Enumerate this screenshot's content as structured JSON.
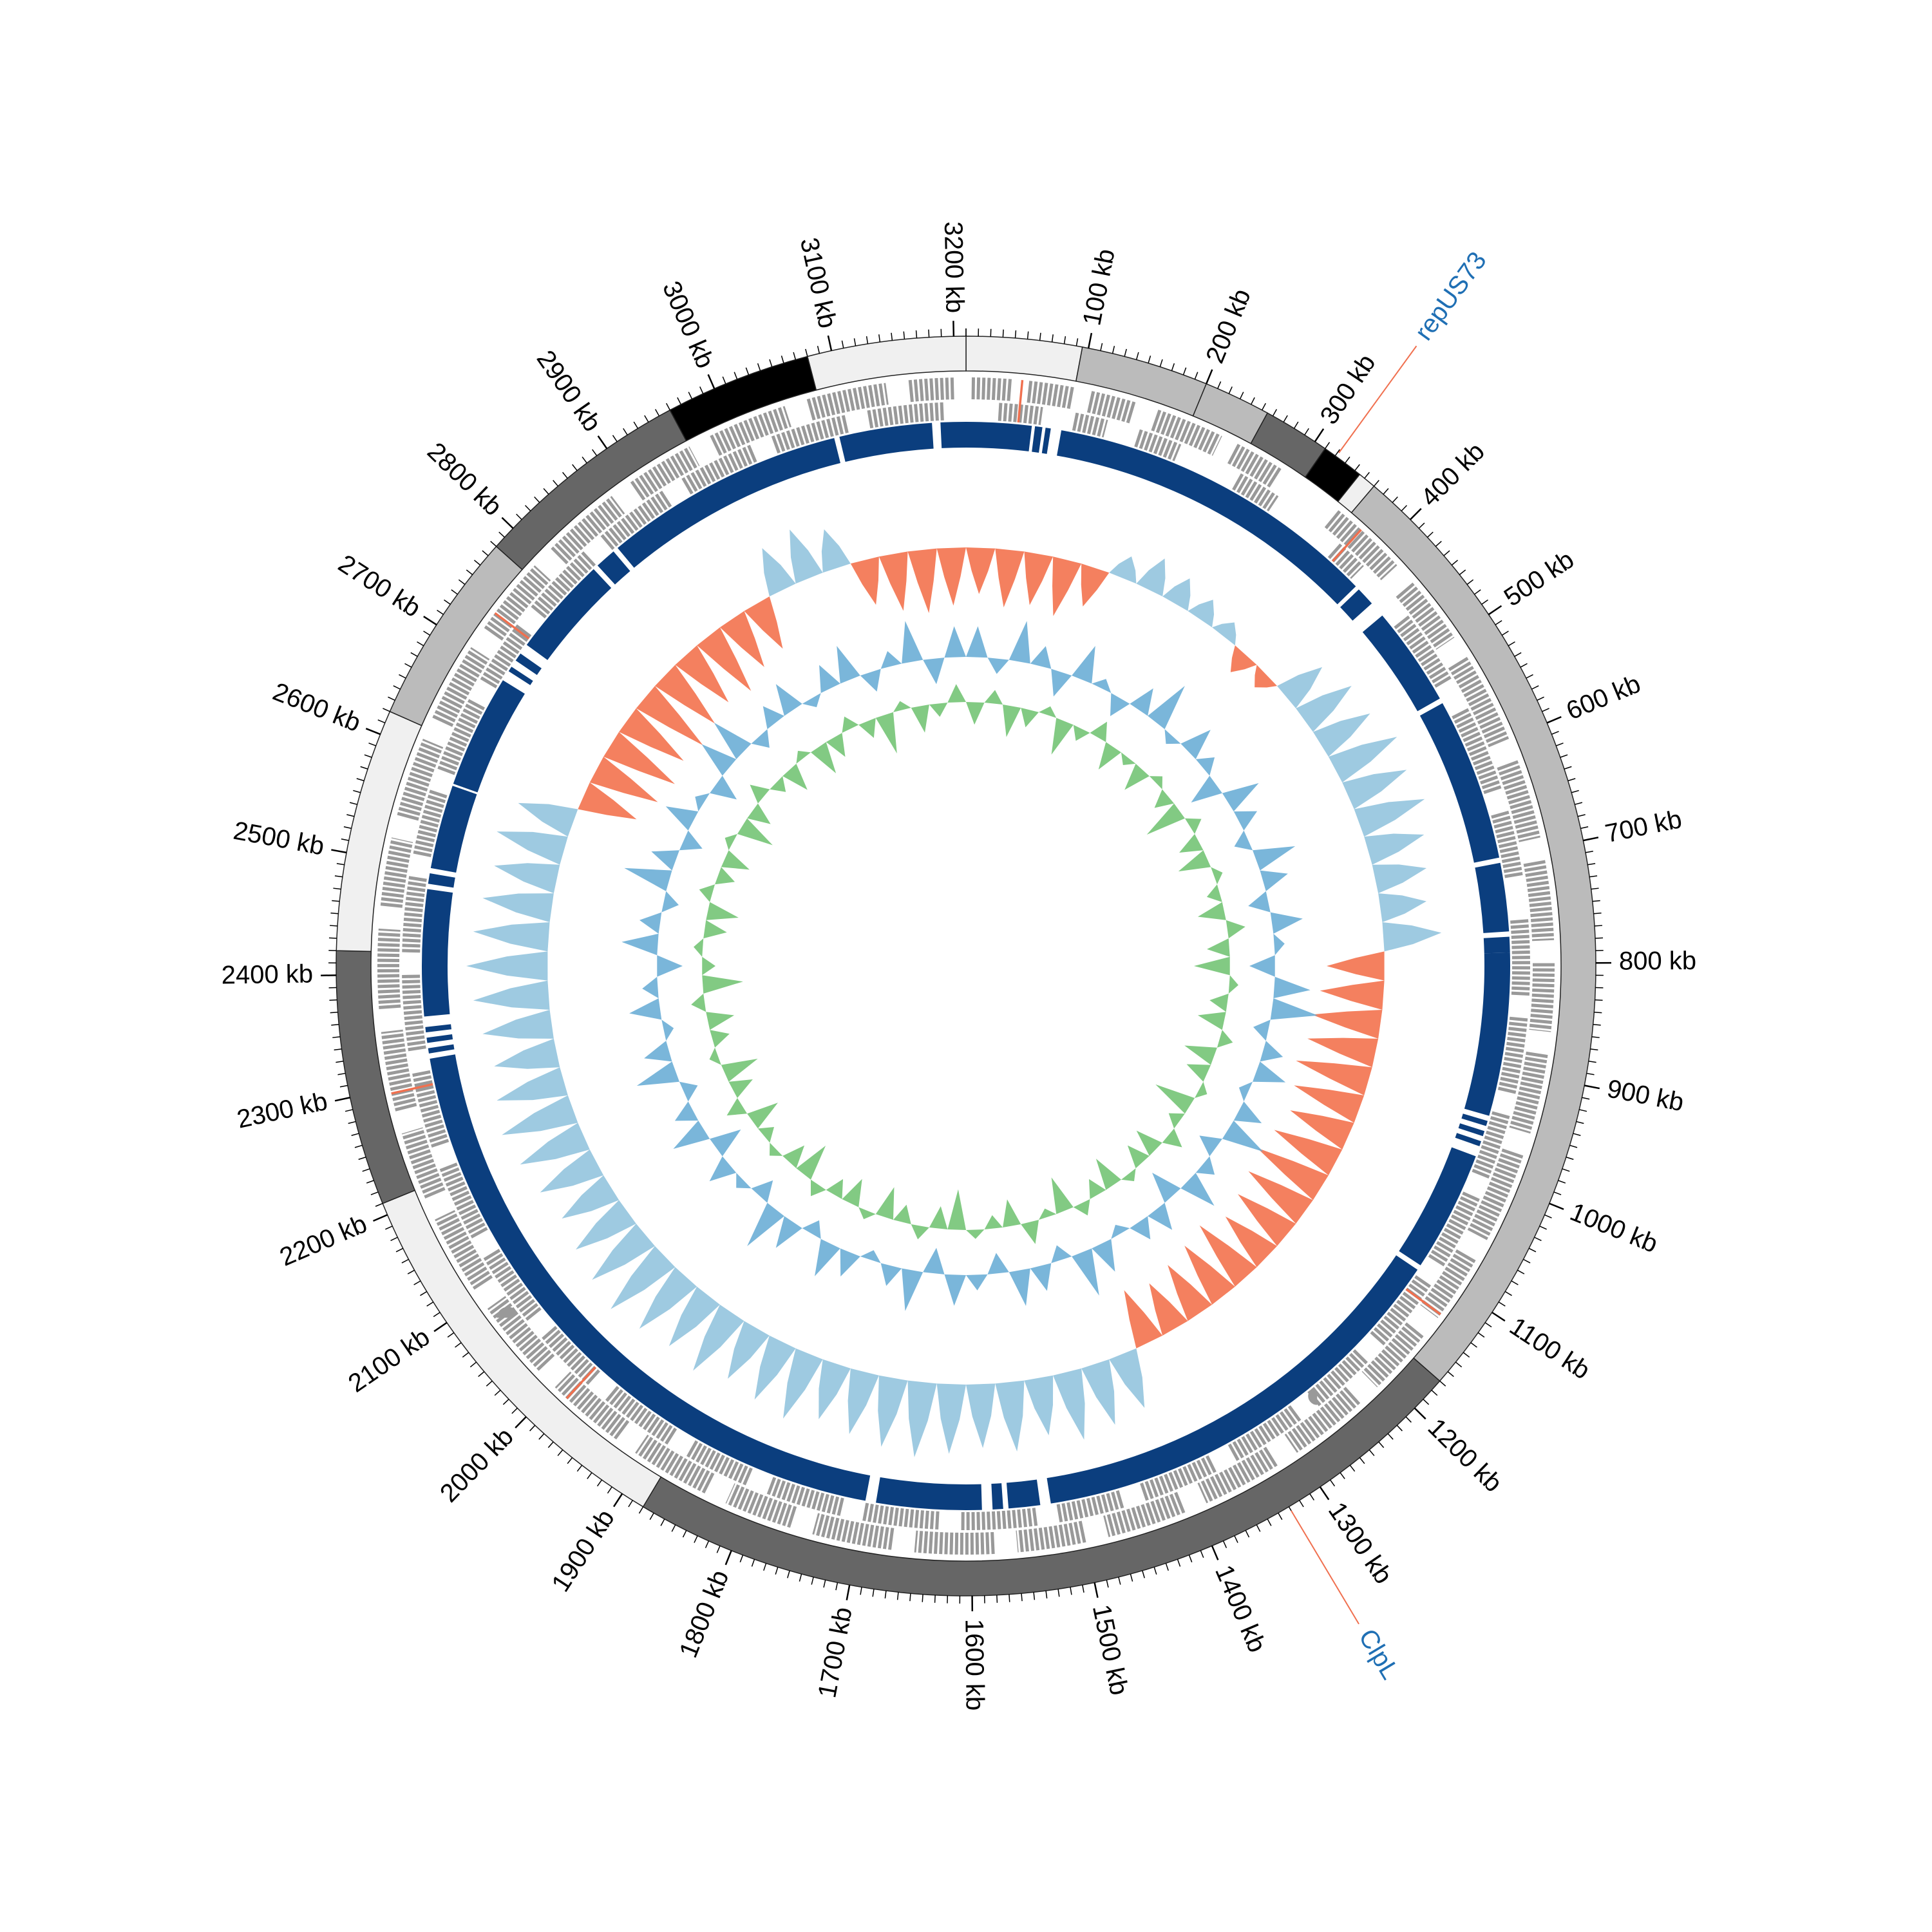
{
  "chart_data": {
    "type": "circular-genome",
    "xlim": [
      0,
      3210
    ],
    "xticks": [
      {
        "value": 100,
        "label": "100 kb"
      },
      {
        "value": 200,
        "label": "200 kb"
      },
      {
        "value": 300,
        "label": "300 kb"
      },
      {
        "value": 400,
        "label": "400 kb"
      },
      {
        "value": 500,
        "label": "500 kb"
      },
      {
        "value": 600,
        "label": "600 kb"
      },
      {
        "value": 700,
        "label": "700 kb"
      },
      {
        "value": 800,
        "label": "800 kb"
      },
      {
        "value": 900,
        "label": "900 kb"
      },
      {
        "value": 1000,
        "label": "1000 kb"
      },
      {
        "value": 1100,
        "label": "1100 kb"
      },
      {
        "value": 1200,
        "label": "1200 kb"
      },
      {
        "value": 1300,
        "label": "1300 kb"
      },
      {
        "value": 1400,
        "label": "1400 kb"
      },
      {
        "value": 1500,
        "label": "1500 kb"
      },
      {
        "value": 1600,
        "label": "1600 kb"
      },
      {
        "value": 1700,
        "label": "1700 kb"
      },
      {
        "value": 1800,
        "label": "1800 kb"
      },
      {
        "value": 1900,
        "label": "1900 kb"
      },
      {
        "value": 2000,
        "label": "2000 kb"
      },
      {
        "value": 2100,
        "label": "2100 kb"
      },
      {
        "value": 2200,
        "label": "2200 kb"
      },
      {
        "value": 2300,
        "label": "2300 kb"
      },
      {
        "value": 2400,
        "label": "2400 kb"
      },
      {
        "value": 2500,
        "label": "2500 kb"
      },
      {
        "value": 2600,
        "label": "2600 kb"
      },
      {
        "value": 2700,
        "label": "2700 kb"
      },
      {
        "value": 2800,
        "label": "2800 kb"
      },
      {
        "value": 2900,
        "label": "2900 kb"
      },
      {
        "value": 3000,
        "label": "3000 kb"
      },
      {
        "value": 3100,
        "label": "3100 kb"
      },
      {
        "value": 3200,
        "label": "3200 kb"
      }
    ],
    "minor_tick_step": 10,
    "ideogram": [
      {
        "start": 0,
        "end": 95,
        "color": "#f0f0f0"
      },
      {
        "start": 95,
        "end": 200,
        "color": "#bbbbbb"
      },
      {
        "start": 200,
        "end": 255,
        "color": "#bbbbbb"
      },
      {
        "start": 255,
        "end": 310,
        "color": "#666666"
      },
      {
        "start": 310,
        "end": 345,
        "color": "#000000"
      },
      {
        "start": 345,
        "end": 360,
        "color": "#f0f0f0"
      },
      {
        "start": 360,
        "end": 1170,
        "color": "#bbbbbb"
      },
      {
        "start": 1170,
        "end": 1880,
        "color": "#666666"
      },
      {
        "start": 1880,
        "end": 2210,
        "color": "#f0f0f0"
      },
      {
        "start": 2210,
        "end": 2420,
        "color": "#666666"
      },
      {
        "start": 2420,
        "end": 2620,
        "color": "#f0f0f0"
      },
      {
        "start": 2620,
        "end": 2780,
        "color": "#bbbbbb"
      },
      {
        "start": 2780,
        "end": 2960,
        "color": "#666666"
      },
      {
        "start": 2960,
        "end": 3080,
        "color": "#000000"
      },
      {
        "start": 3080,
        "end": 3210,
        "color": "#f0f0f0"
      }
    ],
    "genes": {
      "color": "#999999",
      "rna_color": "#f0704f",
      "forward": [
        [
          5,
          40
        ],
        [
          55,
          95
        ],
        [
          110,
          150
        ],
        [
          170,
          230
        ],
        [
          245,
          290
        ],
        [
          350,
          420
        ],
        [
          440,
          500
        ],
        [
          520,
          600
        ],
        [
          620,
          690
        ],
        [
          710,
          780
        ],
        [
          800,
          860
        ],
        [
          880,
          950
        ],
        [
          970,
          1050
        ],
        [
          1070,
          1130
        ],
        [
          1150,
          1210
        ],
        [
          1230,
          1300
        ],
        [
          1320,
          1390
        ],
        [
          1410,
          1480
        ],
        [
          1500,
          1560
        ],
        [
          1580,
          1650
        ],
        [
          1670,
          1740
        ],
        [
          1760,
          1820
        ],
        [
          1840,
          1910
        ],
        [
          1930,
          2000
        ],
        [
          2020,
          2090
        ],
        [
          2110,
          2180
        ],
        [
          2200,
          2260
        ],
        [
          2280,
          2350
        ],
        [
          2370,
          2440
        ],
        [
          2460,
          2520
        ],
        [
          2540,
          2610
        ],
        [
          2630,
          2700
        ],
        [
          2720,
          2790
        ],
        [
          2810,
          2880
        ],
        [
          2900,
          2960
        ],
        [
          2980,
          3050
        ],
        [
          3070,
          3140
        ],
        [
          3160,
          3200
        ]
      ],
      "reverse": [
        [
          30,
          70
        ],
        [
          100,
          130
        ],
        [
          160,
          200
        ],
        [
          260,
          300
        ],
        [
          370,
          400
        ],
        [
          460,
          530
        ],
        [
          560,
          640
        ],
        [
          660,
          720
        ],
        [
          760,
          830
        ],
        [
          850,
          920
        ],
        [
          940,
          1000
        ],
        [
          1020,
          1090
        ],
        [
          1110,
          1180
        ],
        [
          1200,
          1260
        ],
        [
          1280,
          1350
        ],
        [
          1370,
          1440
        ],
        [
          1460,
          1520
        ],
        [
          1540,
          1610
        ],
        [
          1630,
          1700
        ],
        [
          1720,
          1790
        ],
        [
          1810,
          1870
        ],
        [
          1890,
          1960
        ],
        [
          1980,
          2040
        ],
        [
          2060,
          2130
        ],
        [
          2150,
          2220
        ],
        [
          2240,
          2310
        ],
        [
          2330,
          2400
        ],
        [
          2420,
          2490
        ],
        [
          2510,
          2570
        ],
        [
          2590,
          2660
        ],
        [
          2680,
          2740
        ],
        [
          2760,
          2830
        ],
        [
          2850,
          2920
        ],
        [
          2940,
          3010
        ],
        [
          3030,
          3100
        ],
        [
          3120,
          3190
        ]
      ],
      "rna": [
        [
          48,
          50
        ],
        [
          375,
          377
        ],
        [
          1125,
          1127
        ],
        [
          1985,
          1987
        ],
        [
          2295,
          2297
        ],
        [
          2735,
          2737
        ]
      ]
    },
    "hits": {
      "color": "#0b3e7e",
      "segments": [
        [
          0,
          62
        ],
        [
          65,
          72
        ],
        [
          75,
          80
        ],
        [
          90,
          408
        ],
        [
          412,
          430
        ],
        [
          445,
          540
        ],
        [
          545,
          700
        ],
        [
          705,
          770
        ],
        [
          775,
          790
        ],
        [
          790,
          945
        ],
        [
          950,
          955
        ],
        [
          960,
          965
        ],
        [
          970,
          975
        ],
        [
          985,
          1100
        ],
        [
          1105,
          1525
        ],
        [
          1535,
          1565
        ],
        [
          1570,
          1580
        ],
        [
          1590,
          1690
        ],
        [
          1700,
          2320
        ],
        [
          2325,
          2330
        ],
        [
          2335,
          2340
        ],
        [
          2345,
          2350
        ],
        [
          2360,
          2480
        ],
        [
          2485,
          2495
        ],
        [
          2500,
          2580
        ],
        [
          2582,
          2690
        ],
        [
          2700,
          2705
        ],
        [
          2712,
          2720
        ],
        [
          2730,
          2825
        ],
        [
          2830,
          2850
        ],
        [
          2855,
          3085
        ],
        [
          3090,
          3178
        ],
        [
          3186,
          3210
        ]
      ]
    },
    "skew": {
      "ylim": [
        -0.08,
        0.08
      ],
      "positive_color": "#f4805f",
      "negative_color": "#9ecae1",
      "values": [
        0.04,
        0.05,
        0.045,
        0.05,
        0.035,
        -0.02,
        -0.03,
        -0.025,
        -0.02,
        -0.015,
        0.02,
        0.015,
        -0.04,
        -0.05,
        -0.05,
        -0.06,
        -0.055,
        -0.06,
        -0.05,
        -0.045,
        -0.04,
        -0.05,
        0.05,
        0.055,
        0.06,
        0.06,
        0.065,
        0.06,
        0.055,
        0.06,
        0.065,
        0.06,
        0.055,
        0.05,
        0.06,
        0.055,
        0.05,
        0.045,
        0.05,
        -0.05,
        -0.055,
        -0.06,
        -0.05,
        -0.06,
        -0.055,
        -0.06,
        -0.065,
        -0.06,
        -0.055,
        -0.05,
        -0.06,
        -0.055,
        -0.05,
        -0.06,
        -0.055,
        -0.06,
        -0.065,
        -0.06,
        -0.055,
        -0.05,
        -0.055,
        -0.06,
        -0.065,
        -0.06,
        -0.055,
        -0.06,
        -0.065,
        -0.07,
        -0.065,
        -0.06,
        -0.055,
        -0.06,
        -0.05,
        0.05,
        0.06,
        0.065,
        0.06,
        0.065,
        0.06,
        0.055,
        0.06,
        0.05,
        0.045,
        -0.04,
        -0.045,
        -0.035,
        0.04,
        0.05,
        0.055,
        0.05
      ]
    },
    "gc": {
      "ylim": [
        -1,
        1
      ],
      "series": [
        {
          "color": "#74c476",
          "values": [
            -0.5,
            0.3,
            -0.7,
            -0.4,
            0.2,
            -0.8,
            -0.3,
            0.4,
            -0.6,
            -0.2,
            -0.6,
            0.2,
            -0.4,
            -0.9,
            0.3,
            -0.5,
            -0.7,
            0.2,
            -0.3,
            -0.6,
            0.4,
            -0.5,
            -0.8,
            0.2,
            -0.4,
            -0.6,
            0.3,
            -0.7,
            -0.5,
            0.2,
            -0.9,
            -0.3,
            0.4,
            -0.6,
            -0.5,
            0.2,
            -0.7,
            -0.4,
            0.3,
            -0.8,
            -0.2,
            0.5,
            -0.6,
            -0.3,
            0.2,
            -0.9,
            -0.5,
            0.3,
            -0.4,
            -0.7,
            0.2,
            -0.6,
            -0.4,
            0.3,
            -0.8,
            -0.5,
            0.2,
            -0.3,
            -0.7,
            0.4,
            -0.5,
            -0.8,
            0.2,
            -0.4,
            -0.6,
            0.3,
            -0.9,
            -0.3,
            0.2,
            -0.5,
            -0.7,
            0.3,
            -0.4,
            -0.6,
            0.2,
            -0.8,
            -0.5,
            0.4,
            -0.3,
            -0.6,
            0.2,
            -0.7,
            -0.5,
            0.3,
            -0.4,
            -0.9,
            0.2,
            -0.6,
            -0.3,
            0.4
          ]
        },
        {
          "color": "#6baed6",
          "values": [
            0.6,
            -0.3,
            0.8,
            0.4,
            -0.5,
            0.7,
            0.2,
            -0.4,
            0.5,
            0.9,
            -0.2,
            0.6,
            0.3,
            -0.6,
            0.7,
            0.4,
            -0.3,
            0.8,
            0.5,
            -0.4,
            0.6,
            0.2,
            -0.5,
            0.7,
            0.9,
            -0.3,
            0.4,
            0.6,
            -0.2,
            0.5,
            0.8,
            -0.4,
            0.3,
            0.7,
            -0.6,
            0.5,
            0.4,
            -0.2,
            0.6,
            0.9,
            -0.3,
            0.5,
            0.7,
            -0.4,
            0.3,
            0.6,
            -0.5,
            0.8,
            0.4,
            -0.2,
            0.5,
            0.7,
            -0.3,
            0.6,
            0.9,
            -0.4,
            0.2,
            0.5,
            -0.6,
            0.7,
            0.4,
            -0.3,
            0.8,
            0.5,
            -0.2,
            0.6,
            0.3,
            -0.5,
            0.7,
            0.4,
            -0.3,
            0.9,
            0.5,
            -0.4,
            0.6,
            0.2,
            -0.5,
            0.7,
            0.8,
            -0.3,
            0.4,
            0.6,
            -0.2,
            0.5,
            0.7,
            -0.4,
            0.3,
            0.8,
            -0.5,
            0.6
          ]
        }
      ]
    },
    "annotations": {
      "line_color": "#f0704f",
      "text_color": "#1f6fb4",
      "items": [
        {
          "label": "repUS73",
          "position": 321
        },
        {
          "label": "ClpL",
          "position": 1330
        }
      ]
    }
  }
}
